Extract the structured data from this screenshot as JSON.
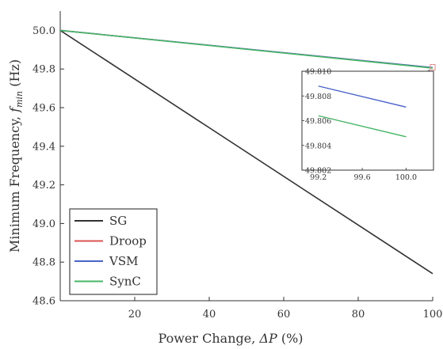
{
  "chart_data": [
    {
      "type": "line",
      "title": "",
      "xlabel_prefix": "Power Change, ",
      "xlabel_symbol": "ΔP",
      "xlabel_suffix": " (%)",
      "ylabel_prefix": "Minimum Frequency, ",
      "ylabel_symbol": "f",
      "ylabel_sub": "min",
      "ylabel_suffix": " (Hz)",
      "xlim": [
        0,
        100
      ],
      "ylim": [
        48.6,
        50.1
      ],
      "xticks": [
        20,
        40,
        60,
        80,
        100
      ],
      "yticks": [
        48.6,
        48.8,
        49.0,
        49.2,
        49.4,
        49.6,
        49.8,
        50.0
      ],
      "legend_position": "bottom-left",
      "series": [
        {
          "name": "SG",
          "color": "#333333",
          "x": [
            0,
            100
          ],
          "y": [
            50.0,
            48.74
          ]
        },
        {
          "name": "Droop",
          "color": "#d9534f",
          "x": [
            0,
            100
          ],
          "y": [
            50.0,
            49.8068
          ]
        },
        {
          "name": "VSM",
          "color": "#4a63c9",
          "x": [
            0,
            100
          ],
          "y": [
            50.0,
            49.8071
          ]
        },
        {
          "name": "SynC",
          "color": "#45b565",
          "x": [
            0,
            100
          ],
          "y": [
            50.0,
            49.8047
          ]
        }
      ]
    },
    {
      "type": "line",
      "title": "",
      "xlim": [
        99.05,
        100.25
      ],
      "ylim": [
        49.802,
        49.81
      ],
      "xticks": [
        99.2,
        99.6,
        100.0
      ],
      "yticks": [
        49.802,
        49.804,
        49.806,
        49.808,
        49.81
      ],
      "ytick_labels": [
        "49.802",
        "49.804",
        "49.806",
        "49.808",
        "49.810"
      ],
      "series": [
        {
          "name": "VSM",
          "color": "#4a63c9",
          "x": [
            99.2,
            100.0
          ],
          "y": [
            49.8088,
            49.8071
          ]
        },
        {
          "name": "SynC",
          "color": "#45b565",
          "x": [
            99.2,
            100.0
          ],
          "y": [
            49.8064,
            49.8047
          ]
        }
      ]
    }
  ]
}
